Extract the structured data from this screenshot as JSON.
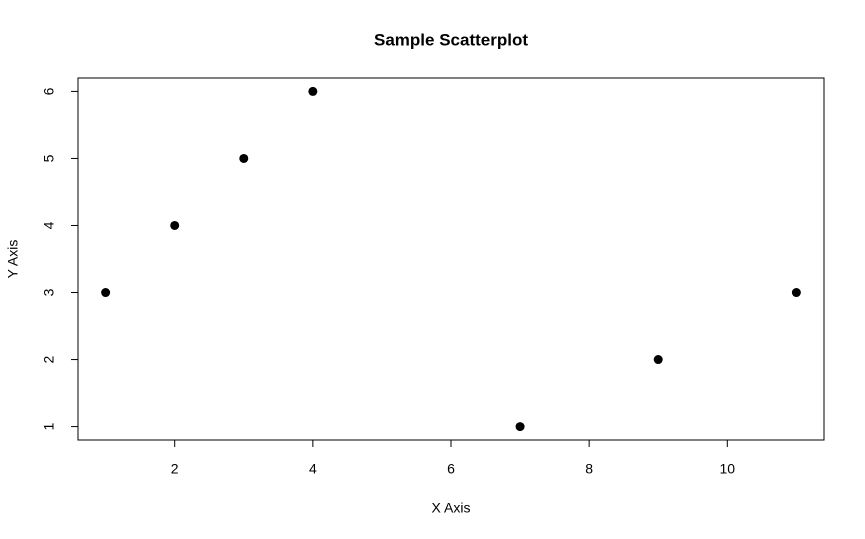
{
  "chart_data": {
    "type": "scatter",
    "title": "Sample Scatterplot",
    "x_label": "X Axis",
    "y_label": "Y Axis",
    "x": [
      1,
      2,
      3,
      4,
      7,
      9,
      11
    ],
    "values": [
      3,
      4,
      5,
      6,
      1,
      2,
      3
    ],
    "color": "#000000",
    "xlim": [
      0.6,
      11.4
    ],
    "ylim": [
      0.8,
      6.2
    ],
    "xticks": [
      2,
      4,
      6,
      8,
      10
    ],
    "yticks": [
      1,
      2,
      3,
      4,
      5,
      6
    ],
    "grid": false
  }
}
